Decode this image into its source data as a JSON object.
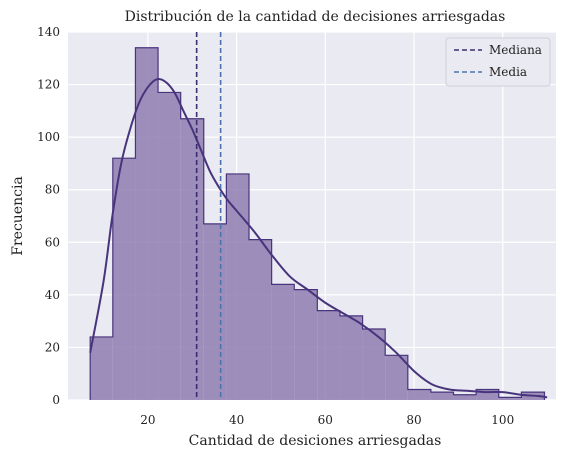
{
  "chart_data": {
    "type": "histogram",
    "title": "Distribución de la cantidad de decisiones arriesgadas",
    "xlabel": "Cantidad de desiciones arriesgadas",
    "ylabel": "Frecuencia",
    "xlim": [
      2,
      112
    ],
    "ylim": [
      0,
      140
    ],
    "x_ticks": [
      20,
      40,
      60,
      80,
      100
    ],
    "y_ticks": [
      0,
      20,
      40,
      60,
      80,
      100,
      120,
      140
    ],
    "grid": true,
    "legend_position": "top-right",
    "bins": [
      {
        "start": 7,
        "end": 12.1,
        "count": 24
      },
      {
        "start": 12.1,
        "end": 17.2,
        "count": 92
      },
      {
        "start": 17.2,
        "end": 22.3,
        "count": 134
      },
      {
        "start": 22.3,
        "end": 27.4,
        "count": 117
      },
      {
        "start": 27.4,
        "end": 32.6,
        "count": 107
      },
      {
        "start": 32.6,
        "end": 37.7,
        "count": 67
      },
      {
        "start": 37.7,
        "end": 42.8,
        "count": 86
      },
      {
        "start": 42.8,
        "end": 47.9,
        "count": 61
      },
      {
        "start": 47.9,
        "end": 53.0,
        "count": 44
      },
      {
        "start": 53.0,
        "end": 58.2,
        "count": 42
      },
      {
        "start": 58.2,
        "end": 63.3,
        "count": 34
      },
      {
        "start": 63.3,
        "end": 68.4,
        "count": 32
      },
      {
        "start": 68.4,
        "end": 73.5,
        "count": 27
      },
      {
        "start": 73.5,
        "end": 78.6,
        "count": 17
      },
      {
        "start": 78.6,
        "end": 83.8,
        "count": 4
      },
      {
        "start": 83.8,
        "end": 88.9,
        "count": 3
      },
      {
        "start": 88.9,
        "end": 94.0,
        "count": 2
      },
      {
        "start": 94.0,
        "end": 99.1,
        "count": 4
      },
      {
        "start": 99.1,
        "end": 104.2,
        "count": 1
      },
      {
        "start": 104.2,
        "end": 109.4,
        "count": 3
      }
    ],
    "kde": {
      "x": [
        7,
        10,
        12,
        14,
        16,
        18,
        20,
        22,
        24,
        26,
        28,
        30,
        32,
        34,
        36,
        38,
        40,
        44,
        48,
        52,
        56,
        60,
        64,
        68,
        72,
        76,
        80,
        84,
        88,
        92,
        96,
        100,
        104,
        108,
        110
      ],
      "y": [
        18,
        45,
        70,
        90,
        103,
        113,
        119,
        122,
        121,
        117,
        110,
        103,
        95,
        87,
        81,
        76,
        72,
        64,
        55,
        47,
        42,
        37,
        33,
        29,
        24,
        18,
        11,
        6,
        4,
        3.5,
        3,
        3,
        2,
        1.5,
        1
      ]
    },
    "vlines": [
      {
        "name": "Mediana",
        "x": 31,
        "color": "#3c2d70",
        "style": "dashed"
      },
      {
        "name": "Media",
        "x": 36.4,
        "color": "#4c72b0",
        "style": "dashed"
      }
    ],
    "colors": {
      "bar_fill": "#8e7db0",
      "bar_edge": "#48347c",
      "kde_line": "#48347c",
      "plot_bg": "#eaeaf2",
      "grid": "#ffffff"
    }
  }
}
